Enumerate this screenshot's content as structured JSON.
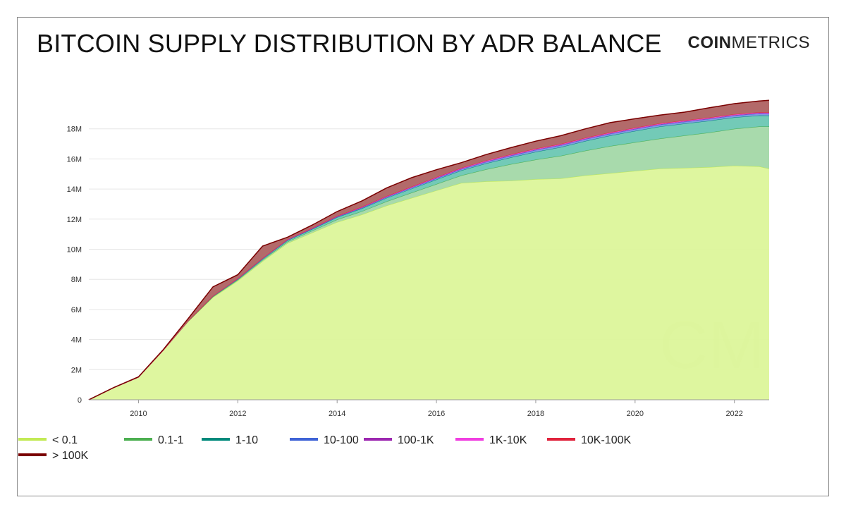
{
  "header": {
    "title": "BITCOIN SUPPLY DISTRIBUTION BY ADR BALANCE",
    "logo_bold": "COIN",
    "logo_light": "METRICS",
    "watermark": "CM"
  },
  "colors": {
    "lt_0_1": "#c2ea55",
    "b0_1_1": "#4caf50",
    "b1_10": "#00897b",
    "b10_100": "#3f63d6",
    "b100_1k": "#9c27b0",
    "b1k_10k": "#f03ee0",
    "b10k_100k": "#e0233c",
    "gt_100k": "#7a0000"
  },
  "chart_data": {
    "type": "area",
    "stacked": true,
    "title": "BITCOIN SUPPLY DISTRIBUTION BY ADR BALANCE",
    "xlabel": "",
    "ylabel": "",
    "xlim": [
      2009.0,
      2022.7
    ],
    "ylim": [
      0,
      20000000
    ],
    "x_ticks": [
      "2010",
      "2012",
      "2014",
      "2016",
      "2018",
      "2020",
      "2022"
    ],
    "y_ticks": [
      "0",
      "2M",
      "4M",
      "6M",
      "8M",
      "10M",
      "12M",
      "14M",
      "16M",
      "18M"
    ],
    "grid": true,
    "legend_position": "bottom",
    "x": [
      2009.0,
      2009.5,
      2010.0,
      2010.5,
      2011.0,
      2011.5,
      2012.0,
      2012.5,
      2013.0,
      2013.5,
      2014.0,
      2014.5,
      2015.0,
      2015.5,
      2016.0,
      2016.5,
      2017.0,
      2017.5,
      2018.0,
      2018.5,
      2019.0,
      2019.5,
      2020.0,
      2020.5,
      2021.0,
      2021.5,
      2022.0,
      2022.5,
      2022.7
    ],
    "series": [
      {
        "name": "< 0.1",
        "values": [
          0,
          800000,
          1500000,
          3300000,
          5200000,
          6800000,
          7900000,
          9200000,
          10400000,
          11100000,
          11800000,
          12300000,
          12900000,
          13400000,
          13900000,
          14400000,
          14500000,
          14550000,
          14650000,
          14700000,
          14900000,
          15050000,
          15200000,
          15350000,
          15400000,
          15450000,
          15550000,
          15500000,
          15350000
        ]
      },
      {
        "name": "0.1-1",
        "values": [
          0,
          0,
          0,
          0,
          20000,
          50000,
          70000,
          90000,
          100000,
          130000,
          170000,
          220000,
          280000,
          350000,
          430000,
          500000,
          800000,
          1100000,
          1300000,
          1500000,
          1650000,
          1800000,
          1900000,
          2000000,
          2150000,
          2300000,
          2450000,
          2650000,
          2800000
        ]
      },
      {
        "name": "1-10",
        "values": [
          0,
          0,
          0,
          0,
          10000,
          30000,
          50000,
          70000,
          90000,
          110000,
          150000,
          190000,
          230000,
          270000,
          300000,
          330000,
          400000,
          450000,
          520000,
          580000,
          640000,
          700000,
          760000,
          800000,
          800000,
          790000,
          760000,
          740000,
          730000
        ]
      },
      {
        "name": "10-100",
        "values": [
          0,
          0,
          0,
          0,
          5000,
          10000,
          15000,
          20000,
          25000,
          30000,
          40000,
          50000,
          60000,
          70000,
          80000,
          90000,
          100000,
          110000,
          120000,
          120000,
          120000,
          120000,
          120000,
          120000,
          120000,
          120000,
          120000,
          120000,
          120000
        ]
      },
      {
        "name": "100-1K",
        "values": [
          0,
          0,
          0,
          0,
          2000,
          5000,
          8000,
          10000,
          12000,
          14000,
          16000,
          18000,
          20000,
          22000,
          25000,
          28000,
          30000,
          30000,
          30000,
          30000,
          30000,
          30000,
          30000,
          30000,
          30000,
          30000,
          30000,
          30000,
          30000
        ]
      },
      {
        "name": "1K-10K",
        "values": [
          0,
          0,
          0,
          0,
          2000,
          5000,
          8000,
          10000,
          12000,
          14000,
          16000,
          18000,
          20000,
          22000,
          25000,
          28000,
          30000,
          30000,
          30000,
          30000,
          30000,
          30000,
          30000,
          30000,
          30000,
          30000,
          30000,
          30000,
          30000
        ]
      },
      {
        "name": "10K-100K",
        "values": [
          0,
          0,
          0,
          0,
          2000,
          5000,
          8000,
          10000,
          12000,
          14000,
          16000,
          18000,
          20000,
          22000,
          25000,
          28000,
          30000,
          30000,
          30000,
          30000,
          30000,
          30000,
          30000,
          30000,
          30000,
          30000,
          30000,
          30000,
          30000
        ]
      },
      {
        "name": "> 100K",
        "values": [
          0,
          10000,
          20000,
          40000,
          150000,
          600000,
          250000,
          800000,
          150000,
          200000,
          300000,
          400000,
          550000,
          600000,
          500000,
          350000,
          400000,
          450000,
          500000,
          550000,
          600000,
          650000,
          600000,
          550000,
          550000,
          650000,
          700000,
          750000,
          800000
        ]
      }
    ]
  }
}
